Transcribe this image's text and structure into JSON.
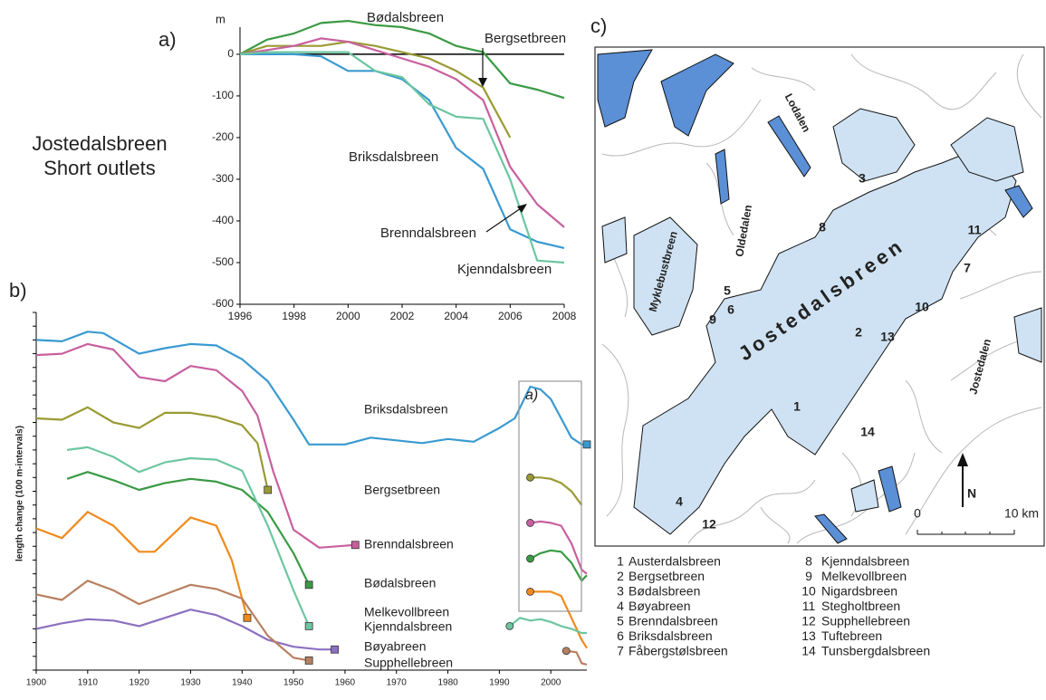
{
  "chart_data": [
    {
      "type": "line",
      "panel_label": "a)",
      "title": [
        "Jostedalsbreen",
        "Short outlets"
      ],
      "y_label": "m",
      "x": [
        1996,
        1997,
        1998,
        1999,
        2000,
        2001,
        2002,
        2003,
        2004,
        2005,
        2006,
        2007,
        2008
      ],
      "xlim": [
        1996,
        2008
      ],
      "xticks": [
        1996,
        1998,
        2000,
        2002,
        2004,
        2006,
        2008
      ],
      "ylim": [
        -600,
        65
      ],
      "yticks": [
        -600,
        -500,
        -400,
        -300,
        -200,
        -100,
        0
      ],
      "zero_line": true,
      "series": [
        {
          "name": "Bødalsbreen",
          "color": "#3a9a44",
          "values": [
            0,
            35,
            50,
            75,
            80,
            70,
            65,
            50,
            20,
            5,
            -70,
            -85,
            -105
          ]
        },
        {
          "name": "Bergsetbreen",
          "color": "#9a9a34",
          "values": [
            0,
            20,
            20,
            20,
            30,
            20,
            5,
            -10,
            -40,
            -80,
            -200,
            null,
            null
          ]
        },
        {
          "name": "Briksdalsbreen",
          "color": "#3a9ad0",
          "values": [
            0,
            0,
            0,
            -5,
            -40,
            -40,
            -60,
            -110,
            -225,
            -275,
            -420,
            -450,
            -465
          ]
        },
        {
          "name": "Brenndalsbreen",
          "color": "#c8609e",
          "values": [
            0,
            10,
            20,
            38,
            30,
            10,
            -10,
            -30,
            -60,
            -110,
            -270,
            -360,
            -415
          ]
        },
        {
          "name": "Kjenndalsbreen",
          "color": "#6cc6a0",
          "values": [
            0,
            5,
            5,
            5,
            5,
            -40,
            -55,
            -120,
            -150,
            -155,
            -300,
            -495,
            -500
          ]
        }
      ]
    },
    {
      "type": "line",
      "panel_label": "b)",
      "inset_label": "a)",
      "y_label": "length change (100 m-intervals)",
      "xlim": [
        1900,
        2007
      ],
      "xticks": [
        1900,
        1910,
        1920,
        1930,
        1940,
        1950,
        1960,
        1970,
        1980,
        1990,
        2000
      ],
      "ylim": [
        0,
        26
      ],
      "yticks": [
        0,
        1,
        2,
        3,
        4,
        5,
        6,
        7,
        8,
        9,
        10,
        11,
        12,
        13,
        14,
        15,
        16,
        17,
        18,
        19,
        20,
        21,
        22,
        23,
        24,
        25,
        26
      ],
      "series": [
        {
          "name": "Briksdalsbreen",
          "color": "#3a9ad0",
          "x": [
            1900,
            1905,
            1910,
            1913,
            1920,
            1925,
            1930,
            1935,
            1940,
            1945,
            1950,
            1953,
            1960,
            1965,
            1970,
            1975,
            1980,
            1985,
            1990,
            1993,
            1996,
            1998,
            2000,
            2002,
            2004,
            2006,
            2007
          ],
          "values": [
            24.0,
            23.9,
            24.6,
            24.5,
            23.0,
            23.4,
            23.7,
            23.6,
            22.6,
            21.0,
            18.2,
            16.4,
            16.4,
            16.9,
            16.7,
            16.5,
            16.8,
            16.6,
            17.6,
            18.3,
            20.6,
            20.4,
            19.7,
            18.3,
            16.9,
            16.4,
            16.4
          ]
        },
        {
          "name": "Bergsetbreen",
          "color": "#9a9a34",
          "x": [
            1900,
            1905,
            1910,
            1915,
            1920,
            1925,
            1930,
            1935,
            1940,
            1943,
            1945,
            1970,
            1996,
            1998,
            2000,
            2002,
            2004,
            2006
          ],
          "values": [
            18.3,
            18.2,
            19.1,
            18.0,
            17.6,
            18.7,
            18.7,
            18.4,
            17.8,
            16.5,
            13.1,
            null,
            14.0,
            14.0,
            13.9,
            13.6,
            13.0,
            12.0
          ]
        },
        {
          "name": "Brenndalsbreen",
          "color": "#c8609e",
          "x": [
            1900,
            1905,
            1910,
            1915,
            1920,
            1925,
            1930,
            1935,
            1940,
            1943,
            1946,
            1950,
            1955,
            1962,
            1980,
            1996,
            1998,
            2000,
            2002,
            2004,
            2006,
            2007
          ],
          "values": [
            22.9,
            23.0,
            23.7,
            23.3,
            21.3,
            21.0,
            22.1,
            21.8,
            20.3,
            18.5,
            14.5,
            10.2,
            8.9,
            9.1,
            null,
            10.7,
            10.8,
            10.7,
            10.5,
            9.2,
            7.3,
            7.0
          ]
        },
        {
          "name": "Bødalsbreen",
          "color": "#3a9a44",
          "x": [
            1906,
            1910,
            1915,
            1920,
            1925,
            1930,
            1935,
            1940,
            1945,
            1950,
            1953,
            1970,
            1996,
            1998,
            2000,
            2002,
            2004,
            2006,
            2007
          ],
          "values": [
            13.9,
            14.4,
            13.8,
            13.1,
            13.6,
            13.9,
            13.7,
            13.1,
            11.5,
            8.5,
            6.2,
            null,
            8.1,
            8.5,
            8.7,
            8.6,
            7.8,
            6.5,
            6.9
          ]
        },
        {
          "name": "Melkevollbreen",
          "color": "#f08a1c",
          "x": [
            1900,
            1905,
            1910,
            1915,
            1920,
            1923,
            1930,
            1935,
            1938,
            1941,
            1970,
            1996,
            1998,
            2000,
            2002,
            2004,
            2006,
            2007
          ],
          "values": [
            10.3,
            9.6,
            11.5,
            10.5,
            8.6,
            8.6,
            11.1,
            10.5,
            8.0,
            3.8,
            null,
            5.7,
            5.7,
            5.7,
            5.4,
            3.8,
            2.2,
            1.6
          ]
        },
        {
          "name": "Kjenndalsbreen",
          "color": "#6cc6a0",
          "x": [
            1906,
            1910,
            1915,
            1920,
            1925,
            1930,
            1935,
            1940,
            1945,
            1950,
            1953,
            1970,
            1992,
            1994,
            1996,
            1998,
            2000,
            2002,
            2004,
            2006,
            2007
          ],
          "values": [
            16.0,
            16.2,
            15.5,
            14.4,
            15.1,
            15.4,
            15.3,
            14.5,
            10.5,
            5.8,
            3.2,
            null,
            3.2,
            3.8,
            3.6,
            3.7,
            3.5,
            3.2,
            3.0,
            2.7,
            2.7
          ]
        },
        {
          "name": "Bøyabreen",
          "color": "#8c70c0",
          "x": [
            1900,
            1905,
            1910,
            1915,
            1920,
            1925,
            1930,
            1935,
            1940,
            1945,
            1950,
            1955,
            1958
          ],
          "values": [
            3.0,
            3.4,
            3.7,
            3.6,
            3.2,
            3.8,
            4.4,
            4.0,
            3.2,
            2.2,
            1.7,
            1.5,
            1.5
          ]
        },
        {
          "name": "Supphellebreen",
          "color": "#b88060",
          "x": [
            1900,
            1905,
            1910,
            1915,
            1920,
            1925,
            1930,
            1935,
            1940,
            1945,
            1950,
            1953,
            1980,
            2003,
            2005,
            2006,
            2007
          ],
          "values": [
            5.5,
            5.1,
            6.5,
            5.8,
            4.8,
            5.5,
            6.2,
            5.9,
            5.2,
            2.5,
            0.9,
            0.7,
            null,
            1.4,
            1.3,
            0.5,
            0.4
          ]
        }
      ]
    }
  ],
  "map": {
    "panel_label": "c)",
    "places": [
      "Lodalen",
      "Oldedalen",
      "Myklebustbreen",
      "Jostedalsbreen",
      "Jostedalen"
    ],
    "sites": [
      {
        "number": 1,
        "name": "Austerdalsbreen"
      },
      {
        "number": 2,
        "name": "Bergsetbreen"
      },
      {
        "number": 3,
        "name": "Bødalsbreen"
      },
      {
        "number": 4,
        "name": "Bøyabreen"
      },
      {
        "number": 5,
        "name": "Brenndalsbreen"
      },
      {
        "number": 6,
        "name": "Briksdalsbreen"
      },
      {
        "number": 7,
        "name": "Fåbergstølsbreen"
      },
      {
        "number": 8,
        "name": "Kjenndalsbreen"
      },
      {
        "number": 9,
        "name": "Melkevollbreen"
      },
      {
        "number": 10,
        "name": "Nigardsbreen"
      },
      {
        "number": 11,
        "name": "Stegholtbreen"
      },
      {
        "number": 12,
        "name": "Supphellebreen"
      },
      {
        "number": 13,
        "name": "Tuftebreen"
      },
      {
        "number": 14,
        "name": "Tunsbergdalsbreen"
      }
    ],
    "scale": [
      "0",
      "10 km"
    ],
    "north": "N"
  }
}
